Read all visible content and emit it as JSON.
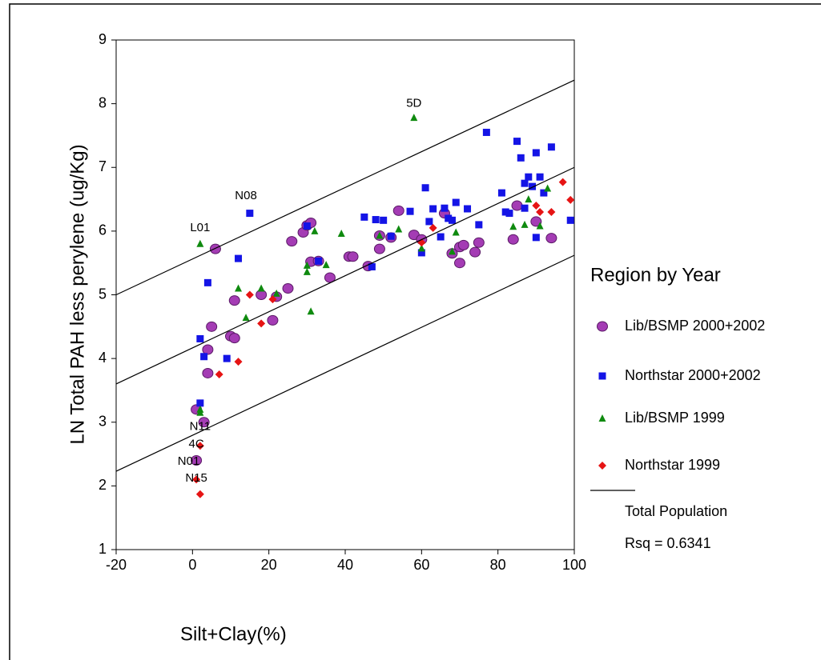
{
  "chart_data": {
    "type": "scatter",
    "xlabel": "Silt+Clay(%)",
    "ylabel": "LN Total PAH less perylene (ug/Kg)",
    "xlim": [
      -20,
      100
    ],
    "ylim": [
      1,
      9
    ],
    "xticks": [
      -20,
      0,
      20,
      40,
      60,
      80,
      100
    ],
    "yticks": [
      1,
      2,
      3,
      4,
      5,
      6,
      7,
      8,
      9
    ],
    "legend_title": "Region by Year",
    "legend_position": "right",
    "rsq_label": "Rsq = 0.6341",
    "series": [
      {
        "name": "Lib/BSMP 2000+2002",
        "marker": "circle",
        "color": "#a43cb4",
        "x": [
          1,
          3,
          4,
          4,
          5,
          6,
          10,
          11,
          11,
          18,
          21,
          22,
          25,
          26,
          29,
          30,
          31,
          31,
          33,
          36,
          41,
          42,
          46,
          49,
          49,
          52,
          54,
          58,
          60,
          66,
          68,
          70,
          70,
          71,
          74,
          75,
          84,
          85,
          90,
          94,
          1
        ],
        "values": [
          3.2,
          3.0,
          3.77,
          4.14,
          4.5,
          5.72,
          4.35,
          4.32,
          4.91,
          5.0,
          4.6,
          4.97,
          5.1,
          5.84,
          5.98,
          6.09,
          6.13,
          5.52,
          5.53,
          5.27,
          5.6,
          5.6,
          5.45,
          5.93,
          5.72,
          5.9,
          6.32,
          5.94,
          5.87,
          6.28,
          5.65,
          5.5,
          5.75,
          5.78,
          5.67,
          5.82,
          5.87,
          6.4,
          6.15,
          5.89,
          2.4
        ]
      },
      {
        "name": "Northstar 2000+2002",
        "marker": "square",
        "color": "#1414e6",
        "x": [
          2,
          2,
          3,
          4,
          9,
          12,
          15,
          30,
          33,
          45,
          47,
          48,
          50,
          52,
          57,
          60,
          61,
          62,
          63,
          65,
          66,
          67,
          68,
          69,
          72,
          75,
          77,
          81,
          82,
          83,
          85,
          86,
          87,
          87,
          88,
          89,
          90,
          90,
          91,
          92,
          94,
          99
        ],
        "values": [
          3.3,
          4.31,
          4.03,
          5.19,
          4.0,
          5.57,
          6.28,
          6.08,
          5.53,
          6.22,
          5.44,
          6.18,
          6.17,
          5.92,
          6.31,
          5.66,
          6.68,
          6.15,
          6.35,
          5.91,
          6.36,
          6.2,
          6.17,
          6.45,
          6.35,
          6.1,
          7.55,
          6.6,
          6.3,
          6.28,
          7.41,
          7.15,
          6.75,
          6.36,
          6.85,
          6.7,
          5.9,
          7.23,
          6.85,
          6.6,
          7.32,
          6.17
        ]
      },
      {
        "name": "Lib/BSMP 1999",
        "marker": "triangle",
        "color": "#0f8a0f",
        "x": [
          2,
          2,
          2,
          12,
          14,
          18,
          22,
          30,
          30,
          31,
          32,
          35,
          39,
          49,
          54,
          58,
          60,
          69,
          68,
          84,
          87,
          88,
          91,
          93
        ],
        "values": [
          5.8,
          3.2,
          3.15,
          5.1,
          4.64,
          5.1,
          5.02,
          5.36,
          5.46,
          4.74,
          6.0,
          5.47,
          5.96,
          5.93,
          6.03,
          7.78,
          5.73,
          5.98,
          5.68,
          6.07,
          6.1,
          6.5,
          6.08,
          6.67
        ]
      },
      {
        "name": "Northstar 1999",
        "marker": "diamond",
        "color": "#e61414",
        "x": [
          2,
          1,
          2,
          7,
          12,
          15,
          18,
          21,
          60,
          63,
          90,
          91,
          94,
          97,
          99
        ],
        "values": [
          2.63,
          2.1,
          1.87,
          3.75,
          3.95,
          5.0,
          4.55,
          4.93,
          5.82,
          6.05,
          6.4,
          6.3,
          6.3,
          6.77,
          6.49
        ]
      },
      {
        "name": "Total Population",
        "marker": "line",
        "color": "#000000",
        "x": [
          -20,
          100
        ],
        "values": [
          3.6,
          7.0
        ],
        "upper": [
          5.0,
          8.37
        ],
        "lower": [
          2.23,
          5.62
        ]
      }
    ],
    "annotations": [
      {
        "text": "5D",
        "x": 58,
        "y": 8.0
      },
      {
        "text": "N08",
        "x": 14,
        "y": 6.55
      },
      {
        "text": "L01",
        "x": 2,
        "y": 6.05
      },
      {
        "text": "N11",
        "x": 2,
        "y": 2.93
      },
      {
        "text": "4C",
        "x": 1,
        "y": 2.65
      },
      {
        "text": "N01",
        "x": -1,
        "y": 2.38
      },
      {
        "text": "N15",
        "x": 1,
        "y": 2.12
      }
    ]
  }
}
